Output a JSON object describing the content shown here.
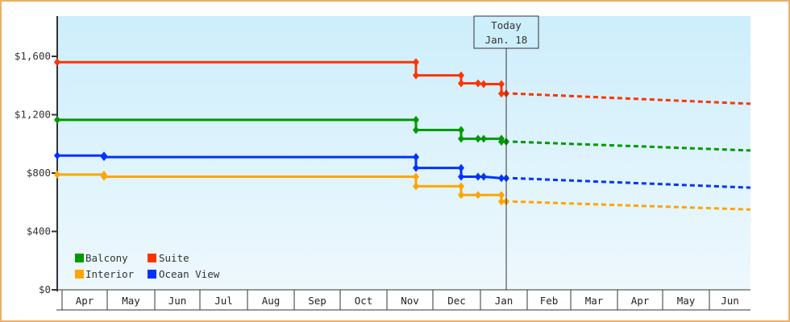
{
  "chart_data": {
    "type": "line",
    "title": "",
    "xlabel": "",
    "ylabel": "",
    "ylim": [
      0,
      1880
    ],
    "y_ticks": [
      "$0",
      "$400",
      "$800",
      "$1,200",
      "$1,600"
    ],
    "y_tick_values": [
      0,
      400,
      800,
      1200,
      1600
    ],
    "months": [
      "Apr",
      "May",
      "Jun",
      "Jul",
      "Aug",
      "Sep",
      "Oct",
      "Nov",
      "Dec",
      "Jan",
      "Feb",
      "Mar",
      "Apr",
      "May",
      "Jun"
    ],
    "today_marker": {
      "line1": "Today",
      "line2": "Jan. 18"
    },
    "grid": false,
    "legend_position": "lower-left",
    "series": [
      {
        "name": "Balcony",
        "color": "#009900",
        "historical": [
          [
            "Mar 31",
            1165
          ],
          [
            "Nov 5",
            1165
          ],
          [
            "Nov 5",
            1095
          ],
          [
            "Dec 5",
            1095
          ],
          [
            "Dec 5",
            1035
          ],
          [
            "Dec 17",
            1035
          ],
          [
            "Dec 21",
            1035
          ],
          [
            "Jan 14",
            1035
          ],
          [
            "Jan 14",
            1015
          ],
          [
            "Jan 18",
            1015
          ]
        ],
        "forecast": [
          [
            "Jan 18",
            1015
          ],
          [
            "Jun 30",
            955
          ]
        ]
      },
      {
        "name": "Suite",
        "color": "#ff3300",
        "historical": [
          [
            "Mar 31",
            1560
          ],
          [
            "Nov 5",
            1560
          ],
          [
            "Nov 5",
            1470
          ],
          [
            "Dec 5",
            1470
          ],
          [
            "Dec 5",
            1415
          ],
          [
            "Dec 17",
            1415
          ],
          [
            "Dec 21",
            1410
          ],
          [
            "Jan 14",
            1410
          ],
          [
            "Jan 14",
            1345
          ],
          [
            "Jan 18",
            1345
          ]
        ],
        "forecast": [
          [
            "Jan 18",
            1345
          ],
          [
            "Jun 30",
            1275
          ]
        ]
      },
      {
        "name": "Interior",
        "color": "#ffa500",
        "historical": [
          [
            "Mar 31",
            790
          ],
          [
            "May 1",
            790
          ],
          [
            "May 1",
            775
          ],
          [
            "Nov 5",
            775
          ],
          [
            "Nov 5",
            710
          ],
          [
            "Dec 5",
            710
          ],
          [
            "Dec 5",
            650
          ],
          [
            "Dec 17",
            650
          ],
          [
            "Jan 14",
            650
          ],
          [
            "Jan 14",
            605
          ],
          [
            "Jan 18",
            605
          ]
        ],
        "forecast": [
          [
            "Jan 18",
            605
          ],
          [
            "Jun 30",
            550
          ]
        ]
      },
      {
        "name": "Ocean View",
        "color": "#0033ff",
        "historical": [
          [
            "Mar 31",
            920
          ],
          [
            "May 1",
            920
          ],
          [
            "May 1",
            910
          ],
          [
            "Nov 5",
            910
          ],
          [
            "Nov 5",
            835
          ],
          [
            "Dec 5",
            835
          ],
          [
            "Dec 5",
            775
          ],
          [
            "Dec 17",
            775
          ],
          [
            "Dec 21",
            775
          ],
          [
            "Jan 14",
            765
          ],
          [
            "Jan 18",
            765
          ]
        ],
        "forecast": [
          [
            "Jan 18",
            765
          ],
          [
            "Jun 30",
            700
          ]
        ]
      }
    ]
  },
  "legend": [
    {
      "label": "Balcony",
      "color": "#009900"
    },
    {
      "label": "Suite",
      "color": "#ff3300"
    },
    {
      "label": "Interior",
      "color": "#ffa500"
    },
    {
      "label": "Ocean View",
      "color": "#0033ff"
    }
  ],
  "today": {
    "line1": "Today",
    "line2": "Jan. 18"
  }
}
